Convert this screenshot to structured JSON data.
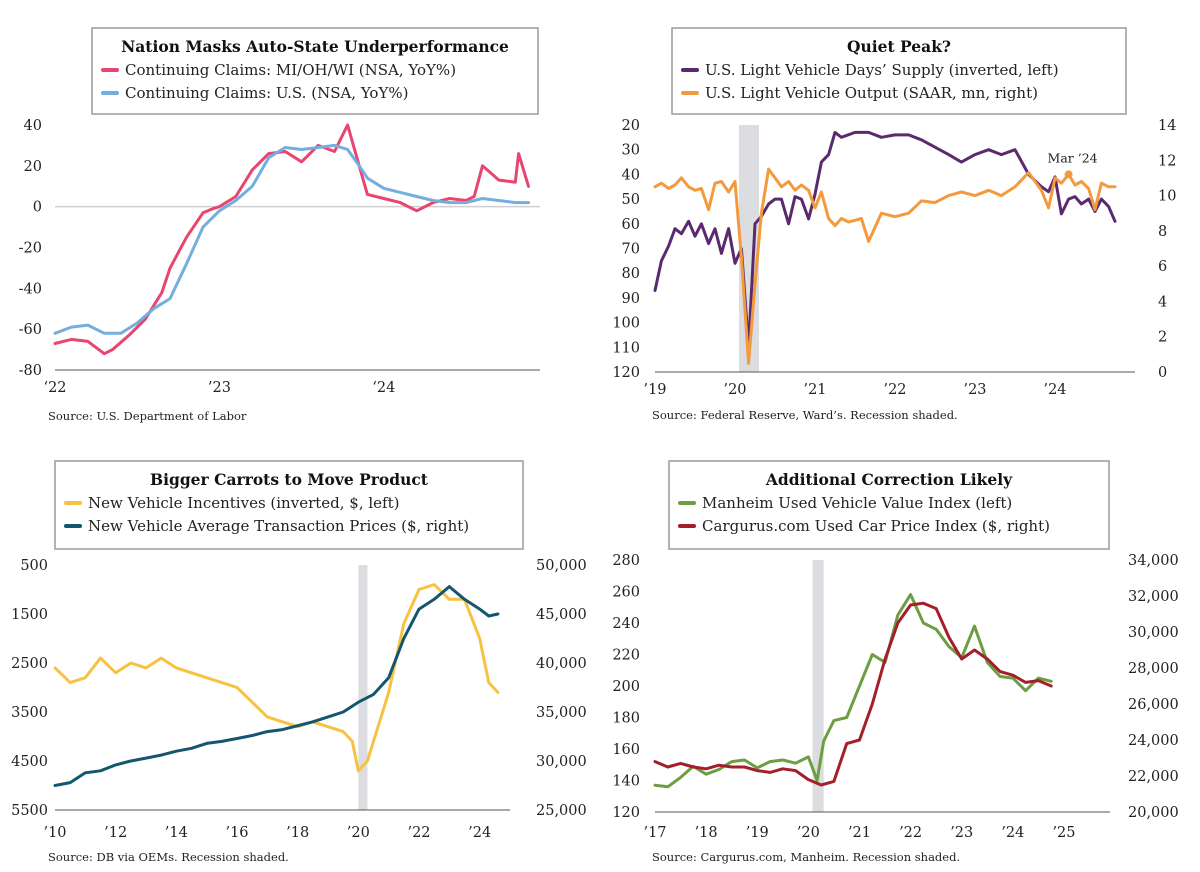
{
  "panels": [
    {
      "title": "Nation Masks Auto-State Underperformance",
      "legend": [
        {
          "label": "Continuing Claims: MI/OH/WI (NSA, YoY%)",
          "color": "#e8456f"
        },
        {
          "label": "Continuing Claims: U.S. (NSA, YoY%)",
          "color": "#74aede"
        }
      ],
      "left_ticks": [
        "40",
        "20",
        "0",
        "-20",
        "-40",
        "-60",
        "-80"
      ],
      "right_ticks": [],
      "x_ticks": [
        "‘22",
        "’23",
        "‘24"
      ],
      "source": "Source: U.S. Department of Labor",
      "annotation": ""
    },
    {
      "title": "Quiet Peak?",
      "legend": [
        {
          "label": "U.S. Light Vehicle Days’ Supply (inverted, left)",
          "color": "#5b2a6e"
        },
        {
          "label": "U.S. Light Vehicle Output (SAAR, mn, right)",
          "color": "#f39a3c"
        }
      ],
      "left_ticks": [
        "20",
        "30",
        "40",
        "50",
        "60",
        "70",
        "80",
        "90",
        "100",
        "110",
        "120"
      ],
      "right_ticks": [
        "14",
        "12",
        "10",
        "8",
        "6",
        "4",
        "2",
        "0"
      ],
      "x_ticks": [
        "’19",
        "’20",
        "’21",
        "’22",
        "’23",
        "’24"
      ],
      "source": "Source: Federal Reserve, Ward’s. Recession shaded.",
      "annotation": "Mar ’24"
    },
    {
      "title": "Bigger Carrots to Move Product",
      "legend": [
        {
          "label": "New Vehicle Incentives (inverted, $, left)",
          "color": "#f7c242"
        },
        {
          "label": "New Vehicle Average Transaction Prices ($, right)",
          "color": "#14566e"
        }
      ],
      "left_ticks": [
        "500",
        "1500",
        "2500",
        "3500",
        "4500",
        "5500"
      ],
      "right_ticks": [
        "50,000",
        "45,000",
        "40,000",
        "35,000",
        "30,000",
        "25,000"
      ],
      "x_ticks": [
        "’10",
        "’12",
        "’14",
        "’16",
        "’18",
        "’20",
        "’22",
        "’24"
      ],
      "source": "Source: DB via OEMs. Recession shaded.",
      "annotation": ""
    },
    {
      "title": "Additional Correction Likely",
      "legend": [
        {
          "label": "Manheim Used Vehicle Value Index (left)",
          "color": "#6e9e43"
        },
        {
          "label": "Cargurus.com Used Car Price Index ($, right)",
          "color": "#a31f2c"
        }
      ],
      "left_ticks": [
        "280",
        "260",
        "240",
        "220",
        "200",
        "180",
        "160",
        "140",
        "120"
      ],
      "right_ticks": [
        "34,000",
        "32,000",
        "30,000",
        "28,000",
        "26,000",
        "24,000",
        "22,000",
        "20,000"
      ],
      "x_ticks": [
        "’17",
        "’18",
        "’19",
        "’20",
        "’21",
        "’22",
        "’23",
        "’24",
        "’25"
      ],
      "source": "Source: Cargurus.com, Manheim. Recession shaded.",
      "annotation": ""
    }
  ],
  "chart_data": [
    {
      "type": "line",
      "title": "Nation Masks Auto-State Underperformance",
      "x_range": [
        2022.0,
        2024.95
      ],
      "ylim": [
        -80,
        40
      ],
      "series": [
        {
          "name": "Continuing Claims: MI/OH/WI (NSA, YoY%)",
          "color": "#e8456f",
          "x": [
            2022.0,
            2022.1,
            2022.2,
            2022.3,
            2022.35,
            2022.45,
            2022.55,
            2022.65,
            2022.7,
            2022.8,
            2022.9,
            2022.96,
            2023.0,
            2023.1,
            2023.2,
            2023.3,
            2023.4,
            2023.5,
            2023.6,
            2023.7,
            2023.78,
            2023.85,
            2023.9,
            2024.0,
            2024.1,
            2024.2,
            2024.3,
            2024.4,
            2024.5,
            2024.55,
            2024.6,
            2024.7,
            2024.8,
            2024.82,
            2024.88
          ],
          "y": [
            -67,
            -65,
            -66,
            -72,
            -70,
            -63,
            -55,
            -42,
            -30,
            -15,
            -3,
            -1,
            0,
            5,
            18,
            26,
            27,
            22,
            30,
            27,
            40,
            20,
            6,
            4,
            2,
            -2,
            2,
            4,
            3,
            5,
            20,
            13,
            12,
            26,
            10
          ]
        },
        {
          "name": "Continuing Claims: U.S. (NSA, YoY%)",
          "color": "#74aede",
          "x": [
            2022.0,
            2022.1,
            2022.2,
            2022.3,
            2022.4,
            2022.5,
            2022.6,
            2022.7,
            2022.8,
            2022.9,
            2023.0,
            2023.1,
            2023.2,
            2023.3,
            2023.4,
            2023.5,
            2023.6,
            2023.7,
            2023.78,
            2023.85,
            2023.9,
            2024.0,
            2024.1,
            2024.2,
            2024.3,
            2024.4,
            2024.5,
            2024.6,
            2024.7,
            2024.8,
            2024.88
          ],
          "y": [
            -62,
            -59,
            -58,
            -62,
            -62,
            -57,
            -50,
            -45,
            -28,
            -10,
            -2,
            3,
            10,
            24,
            29,
            28,
            29,
            30,
            28,
            20,
            14,
            9,
            7,
            5,
            3,
            2,
            2,
            4,
            3,
            2,
            2
          ]
        }
      ]
    },
    {
      "type": "line",
      "title": "Quiet Peak?",
      "x_range": [
        2019.0,
        2025.0
      ],
      "ylim_left": [
        20,
        120
      ],
      "left_inverted": true,
      "ylim_right": [
        0,
        14
      ],
      "recession": [
        2020.05,
        2020.3
      ],
      "series": [
        {
          "name": "U.S. Light Vehicle Days’ Supply (inverted, left)",
          "color": "#5b2a6e",
          "axis": "left",
          "x": [
            2019.0,
            2019.08,
            2019.17,
            2019.25,
            2019.33,
            2019.42,
            2019.5,
            2019.58,
            2019.67,
            2019.75,
            2019.83,
            2019.92,
            2020.0,
            2020.08,
            2020.17,
            2020.25,
            2020.33,
            2020.42,
            2020.5,
            2020.58,
            2020.67,
            2020.75,
            2020.83,
            2020.92,
            2021.0,
            2021.08,
            2021.17,
            2021.25,
            2021.33,
            2021.5,
            2021.67,
            2021.83,
            2022.0,
            2022.17,
            2022.33,
            2022.5,
            2022.67,
            2022.83,
            2023.0,
            2023.17,
            2023.33,
            2023.5,
            2023.67,
            2023.83,
            2023.92,
            2024.0,
            2024.08,
            2024.17,
            2024.25,
            2024.33,
            2024.42,
            2024.5,
            2024.58,
            2024.67,
            2024.75
          ],
          "y": [
            87,
            75,
            69,
            62,
            64,
            59,
            65,
            60,
            68,
            62,
            72,
            62,
            76,
            70,
            110,
            60,
            57,
            52,
            50,
            50,
            60,
            49,
            50,
            58,
            48,
            35,
            32,
            23,
            25,
            23,
            23,
            25,
            24,
            24,
            26,
            29,
            32,
            35,
            32,
            30,
            32,
            30,
            40,
            45,
            47,
            41,
            56,
            50,
            49,
            52,
            50,
            55,
            50,
            53,
            59
          ]
        },
        {
          "name": "U.S. Light Vehicle Output (SAAR, mn, right)",
          "color": "#f39a3c",
          "axis": "right",
          "x": [
            2019.0,
            2019.08,
            2019.17,
            2019.25,
            2019.33,
            2019.42,
            2019.5,
            2019.58,
            2019.67,
            2019.75,
            2019.83,
            2019.92,
            2020.0,
            2020.08,
            2020.17,
            2020.25,
            2020.33,
            2020.42,
            2020.5,
            2020.58,
            2020.67,
            2020.75,
            2020.83,
            2020.92,
            2021.0,
            2021.08,
            2021.17,
            2021.25,
            2021.33,
            2021.42,
            2021.5,
            2021.58,
            2021.67,
            2021.83,
            2022.0,
            2022.17,
            2022.33,
            2022.5,
            2022.67,
            2022.83,
            2023.0,
            2023.17,
            2023.33,
            2023.5,
            2023.67,
            2023.83,
            2023.92,
            2024.0,
            2024.08,
            2024.17,
            2024.25,
            2024.33,
            2024.42,
            2024.5,
            2024.58,
            2024.67,
            2024.75
          ],
          "y": [
            10.5,
            10.7,
            10.4,
            10.6,
            11.0,
            10.5,
            10.3,
            10.4,
            9.2,
            10.7,
            10.8,
            10.2,
            10.8,
            6.5,
            0.5,
            5.0,
            9.0,
            11.5,
            11.0,
            10.5,
            10.8,
            10.3,
            10.6,
            10.3,
            9.3,
            10.2,
            8.7,
            8.3,
            8.7,
            8.5,
            8.6,
            8.7,
            7.4,
            9.0,
            8.8,
            9.0,
            9.7,
            9.6,
            10.0,
            10.2,
            10.0,
            10.3,
            10.0,
            10.5,
            11.3,
            10.3,
            9.3,
            11.0,
            10.7,
            11.2,
            10.6,
            10.8,
            10.4,
            9.2,
            10.7,
            10.5,
            10.5
          ]
        }
      ]
    },
    {
      "type": "line",
      "title": "Bigger Carrots to Move Product",
      "x_range": [
        2010.0,
        2025.0
      ],
      "ylim_left": [
        500,
        5500
      ],
      "left_inverted": true,
      "ylim_right": [
        25000,
        50000
      ],
      "recession": [
        2020.0,
        2020.3
      ],
      "series": [
        {
          "name": "New Vehicle Incentives (inverted, $, left)",
          "color": "#f7c242",
          "axis": "left",
          "x": [
            2010.0,
            2010.5,
            2011.0,
            2011.5,
            2012.0,
            2012.5,
            2013.0,
            2013.5,
            2014.0,
            2014.5,
            2015.0,
            2015.5,
            2016.0,
            2016.5,
            2017.0,
            2017.5,
            2018.0,
            2018.5,
            2019.0,
            2019.5,
            2019.8,
            2020.0,
            2020.3,
            2020.6,
            2021.0,
            2021.5,
            2022.0,
            2022.5,
            2023.0,
            2023.5,
            2024.0,
            2024.3,
            2024.6
          ],
          "y": [
            2600,
            2900,
            2800,
            2400,
            2700,
            2500,
            2600,
            2400,
            2600,
            2700,
            2800,
            2900,
            3000,
            3300,
            3600,
            3700,
            3800,
            3700,
            3800,
            3900,
            4100,
            4700,
            4500,
            3900,
            3100,
            1700,
            1000,
            900,
            1200,
            1200,
            2000,
            2900,
            3100
          ]
        },
        {
          "name": "New Vehicle Average Transaction Prices ($, right)",
          "color": "#14566e",
          "axis": "right",
          "x": [
            2010.0,
            2010.5,
            2011.0,
            2011.5,
            2012.0,
            2012.5,
            2013.0,
            2013.5,
            2014.0,
            2014.5,
            2015.0,
            2015.5,
            2016.0,
            2016.5,
            2017.0,
            2017.5,
            2018.0,
            2018.5,
            2019.0,
            2019.5,
            2020.0,
            2020.5,
            2021.0,
            2021.5,
            2022.0,
            2022.5,
            2023.0,
            2023.5,
            2024.0,
            2024.3,
            2024.6
          ],
          "y": [
            27500,
            27800,
            28800,
            29000,
            29600,
            30000,
            30300,
            30600,
            31000,
            31300,
            31800,
            32000,
            32300,
            32600,
            33000,
            33200,
            33600,
            34000,
            34500,
            35000,
            36000,
            36800,
            38500,
            42500,
            45500,
            46500,
            47800,
            46500,
            45500,
            44800,
            45000
          ]
        }
      ]
    },
    {
      "type": "line",
      "title": "Additional Correction Likely",
      "x_range": [
        2017.0,
        2025.9
      ],
      "ylim_left": [
        120,
        280
      ],
      "ylim_right": [
        20000,
        34000
      ],
      "recession": [
        2020.08,
        2020.3
      ],
      "series": [
        {
          "name": "Manheim Used Vehicle Value Index (left)",
          "color": "#6e9e43",
          "axis": "left",
          "x": [
            2017.0,
            2017.25,
            2017.5,
            2017.75,
            2018.0,
            2018.25,
            2018.5,
            2018.75,
            2019.0,
            2019.25,
            2019.5,
            2019.75,
            2020.0,
            2020.17,
            2020.3,
            2020.5,
            2020.75,
            2021.0,
            2021.25,
            2021.5,
            2021.75,
            2022.0,
            2022.25,
            2022.5,
            2022.75,
            2023.0,
            2023.25,
            2023.5,
            2023.75,
            2024.0,
            2024.25,
            2024.5,
            2024.75
          ],
          "y": [
            137,
            136,
            142,
            149,
            144,
            147,
            152,
            153,
            148,
            152,
            153,
            151,
            155,
            140,
            165,
            178,
            180,
            200,
            220,
            215,
            245,
            258,
            240,
            236,
            225,
            218,
            238,
            215,
            206,
            205,
            197,
            205,
            203
          ]
        },
        {
          "name": "Cargurus.com Used Car Price Index ($, right)",
          "color": "#a31f2c",
          "axis": "right",
          "x": [
            2017.0,
            2017.25,
            2017.5,
            2017.75,
            2018.0,
            2018.25,
            2018.5,
            2018.75,
            2019.0,
            2019.25,
            2019.5,
            2019.75,
            2020.0,
            2020.25,
            2020.5,
            2020.75,
            2021.0,
            2021.25,
            2021.5,
            2021.75,
            2022.0,
            2022.25,
            2022.5,
            2022.75,
            2023.0,
            2023.25,
            2023.5,
            2023.75,
            2024.0,
            2024.25,
            2024.5,
            2024.75
          ],
          "y": [
            22800,
            22500,
            22700,
            22500,
            22400,
            22600,
            22500,
            22500,
            22300,
            22200,
            22400,
            22300,
            21800,
            21500,
            21700,
            23800,
            24000,
            26000,
            28500,
            30500,
            31500,
            31600,
            31300,
            29700,
            28500,
            29000,
            28500,
            27800,
            27600,
            27200,
            27300,
            27000
          ]
        }
      ]
    }
  ]
}
